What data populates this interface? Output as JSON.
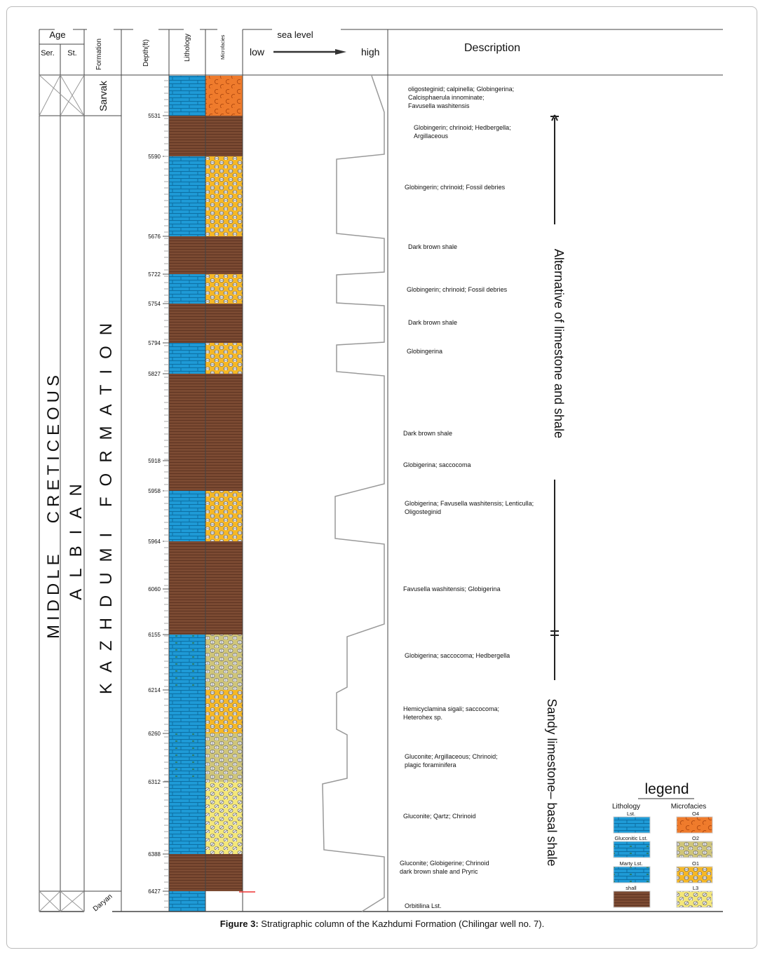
{
  "header": {
    "age": "Age",
    "series": "Ser.",
    "stage": "St.",
    "formation": "Formation",
    "depth": "Depth(ft)",
    "lithology": "Lithology",
    "microfacies": "Microfacies",
    "sea_level": "sea level",
    "low": "low",
    "high": "high",
    "description": "Description"
  },
  "column_labels": {
    "series": "MIDDLE   CRETICEOUS",
    "stage": "ALBIAN",
    "formation": "KAZHDUMI FORMATION",
    "upper_formation": "Sarvak",
    "lower_formation": "Daryan"
  },
  "layers": [
    {
      "top": 5500,
      "bottom": 5531,
      "litho": "lst",
      "micro": "O4"
    },
    {
      "top": 5531,
      "bottom": 5590,
      "litho": "shale",
      "micro": "shale"
    },
    {
      "top": 5590,
      "bottom": 5676,
      "litho": "lst",
      "micro": "O1"
    },
    {
      "top": 5676,
      "bottom": 5722,
      "litho": "shale",
      "micro": "shale"
    },
    {
      "top": 5722,
      "bottom": 5754,
      "litho": "lst",
      "micro": "O1"
    },
    {
      "top": 5754,
      "bottom": 5794,
      "litho": "shale",
      "micro": "shale"
    },
    {
      "top": 5794,
      "bottom": 5827,
      "litho": "lst",
      "micro": "O1"
    },
    {
      "top": 5827,
      "bottom": 5958,
      "litho": "shale",
      "micro": "shale"
    },
    {
      "top": 5958,
      "bottom": 5964,
      "litho": "lst",
      "micro": "O1"
    },
    {
      "top": 5964,
      "bottom": 6155,
      "litho": "shale",
      "micro": "shale"
    },
    {
      "top": 6155,
      "bottom": 6214,
      "litho": "glst",
      "micro": "O2"
    },
    {
      "top": 6214,
      "bottom": 6260,
      "litho": "lst",
      "micro": "O1"
    },
    {
      "top": 6260,
      "bottom": 6312,
      "litho": "glst",
      "micro": "O2"
    },
    {
      "top": 6312,
      "bottom": 6388,
      "litho": "lst",
      "micro": "L3"
    },
    {
      "top": 6388,
      "bottom": 6427,
      "litho": "shale",
      "micro": "shale"
    },
    {
      "top": 6427,
      "bottom": 6450,
      "litho": "lst",
      "micro": "none"
    }
  ],
  "depth_ticks": [
    "5531",
    "5590",
    "5676",
    "5722",
    "5754",
    "5794",
    "5827",
    "5918",
    "5958",
    "5964",
    "6060",
    "6155",
    "6214",
    "6260",
    "6312",
    "6388",
    "6427"
  ],
  "descriptions": [
    [
      "oligosteginid; calpinella; Globingerina;",
      "Calcisphaerula innominate;",
      "Favusella washitensis"
    ],
    [
      "Globingerin; chrinoid; Hedbergella;",
      "Argillaceous"
    ],
    [
      "Globingerin; chrinoid; Fossil debries"
    ],
    [
      "Dark brown shale"
    ],
    [
      "Globingerin; chrinoid; Fossil debries"
    ],
    [
      "Dark brown shale"
    ],
    [
      "Globingerina"
    ],
    [
      "Dark brown shale"
    ],
    [
      "Globigerina; saccocoma"
    ],
    [
      "Globigerina; Favusella washitensis; Lenticulla;",
      "Oligosteginid"
    ],
    [
      "Favusella washitensis; Globigerina"
    ],
    [
      "Globigerina; saccocoma; Hedbergella"
    ],
    [
      "Hemicyclamina sigali; saccocoma;",
      "Heterohex sp."
    ],
    [
      "Gluconite; Argillaceous; Chrinoid;",
      "plagic foraminifera"
    ],
    [
      "Gluconite; Qartz; Chrinoid"
    ],
    [
      "Gluconite; Globigerine; Chrinoid",
      "dark brown shale and Pryric"
    ],
    [
      "Orbitilina Lst."
    ]
  ],
  "cycles": [
    "Alternative of limestone and shale",
    "Sandy limestone– basal shale"
  ],
  "legend": {
    "title": "legend",
    "lithology": "Lithology",
    "microfacies": "Microfacies",
    "litho_items": [
      "Lst.",
      "Gluconitic Lst.",
      "Marty Lst.",
      "shall"
    ],
    "micro_items": [
      "O4",
      "O2",
      "O1",
      "L3"
    ]
  },
  "caption": {
    "label": "Figure 3:",
    "text": " Stratigraphic column of the Kazhdumi Formation (Chilingar well no. 7)."
  },
  "colors": {
    "lst": "#1e9ad6",
    "shale": "#7b4a32",
    "O4": "#ef7b2c",
    "O1": "#f6b826",
    "O2": "#cfc57a",
    "L3": "#f4e77a"
  }
}
